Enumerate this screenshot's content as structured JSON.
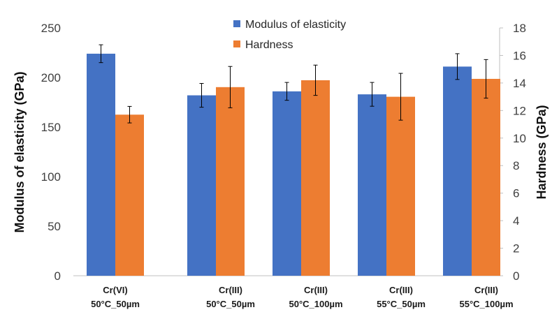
{
  "chart_data": {
    "type": "bar",
    "title": "",
    "categories": [
      [
        "Cr(VI)",
        "50°C_50µm"
      ],
      [
        "Cr(III)",
        "50°C_50µm"
      ],
      [
        "Cr(III)",
        "50°C_100µm"
      ],
      [
        "Cr(III)",
        "55°C_50µm"
      ],
      [
        "Cr(III)",
        "55°C_100µm"
      ]
    ],
    "series": [
      {
        "name": "Modulus of elasticity",
        "axis": "left",
        "color": "#4472c4",
        "values": [
          224,
          182,
          186,
          183,
          211
        ],
        "errors": [
          9,
          12,
          9,
          12,
          13
        ]
      },
      {
        "name": "Hardness",
        "axis": "right",
        "color": "#ed7d31",
        "values": [
          11.7,
          13.7,
          14.2,
          13.0,
          14.3
        ],
        "errors": [
          0.6,
          1.5,
          1.1,
          1.7,
          1.4
        ]
      }
    ],
    "ylabel": "Modulus of elasticity (GPa)",
    "y2label": "Hardness  (GPa)",
    "ylim": [
      0,
      250
    ],
    "y2lim": [
      0,
      18
    ],
    "yticks": [
      "0",
      "50",
      "100",
      "150",
      "200",
      "250"
    ],
    "y2ticks": [
      "0",
      "2",
      "4",
      "6",
      "8",
      "10",
      "12",
      "14",
      "16",
      "18"
    ],
    "legend_position": "top-center"
  }
}
